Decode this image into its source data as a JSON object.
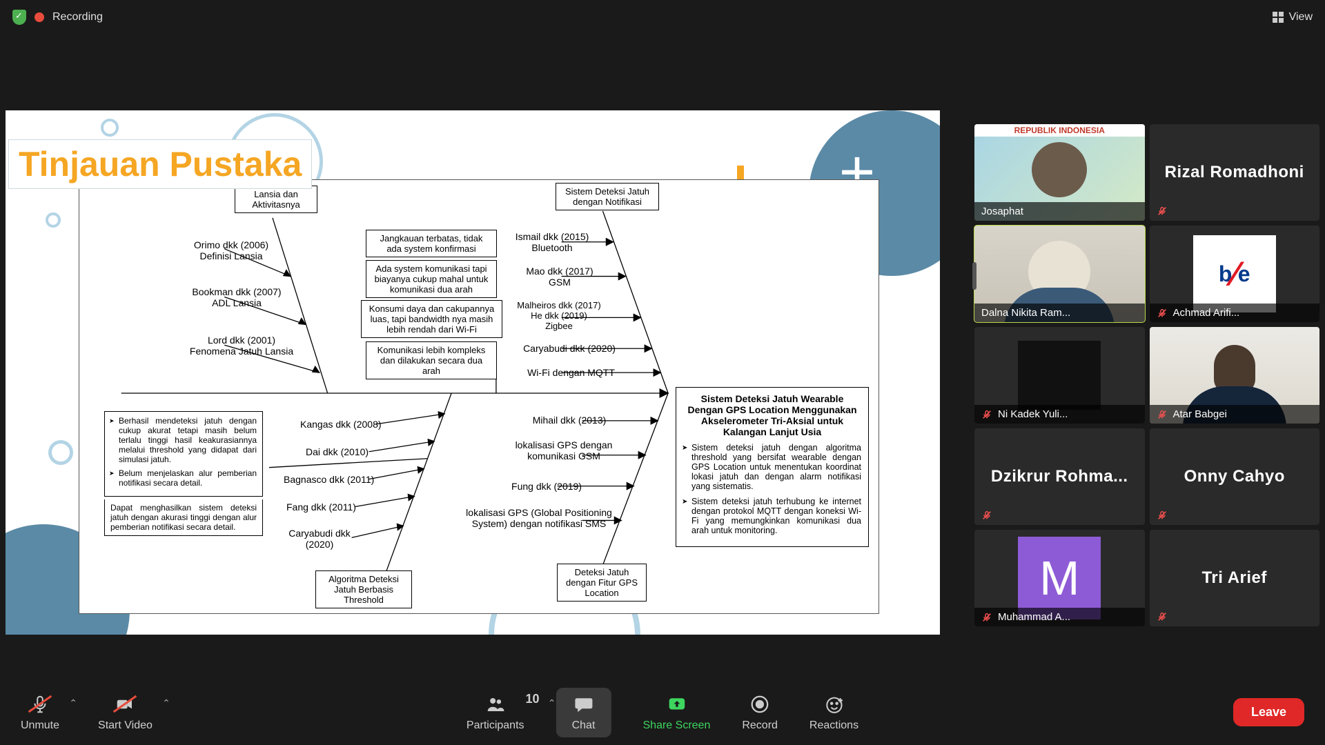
{
  "topbar": {
    "recording": "Recording",
    "view": "View"
  },
  "slide": {
    "title": "Tinjauan Pustaka",
    "b_top_left": "Lansia dan Aktivitasnya",
    "b_top_right": "Sistem Deteksi Jatuh dengan Notifikasi",
    "l1": "Orimo dkk (2006)\nDefinisi Lansia",
    "l2": "Bookman dkk (2007)\nADL Lansia",
    "l3": "Lord dkk (2001)\nFenomena Jatuh Lansia",
    "m1": "Jangkauan terbatas, tidak ada system konfirmasi",
    "m2": "Ada system komunikasi tapi biayanya cukup mahal untuk komunikasi dua arah",
    "m3": "Konsumi daya dan cakupannya luas, tapi bandwidth nya masih lebih rendah dari Wi-Fi",
    "m4": "Komunikasi lebih kompleks dan dilakukan secara dua arah",
    "r1": "Ismail dkk (2015)\nBluetooth",
    "r2": "Mao dkk (2017)\nGSM",
    "r3": "Malheiros dkk (2017)\nHe dkk (2019)\nZigbee",
    "r4": "Caryabudi dkk (2020)",
    "r5": "Wi-Fi dengan MQTT",
    "main_hd": "Sistem Deteksi Jatuh Wearable Dengan GPS Location Menggunakan Akselerometer Tri-Aksial untuk Kalangan Lanjut Usia",
    "main_li1": "Sistem deteksi jatuh dengan algoritma threshold yang bersifat wearable dengan GPS Location untuk menentukan koordinat lokasi jatuh dan dengan alarm notifikasi yang sistematis.",
    "main_li2": "Sistem deteksi jatuh terhubung ke internet dengan protokol MQTT dengan koneksi Wi-Fi yang memungkinkan komunikasi dua arah untuk monitoring.",
    "note_li1": "Berhasil mendeteksi jatuh dengan cukup akurat tetapi masih belum terlalu tinggi hasil keakurasiannya melalui threshold yang didapat dari simulasi jatuh.",
    "note_li2": "Belum menjelaskan alur pemberian notifikasi secara detail.",
    "note_sub": "Dapat menghasilkan sistem deteksi jatuh dengan akurasi tinggi dengan alur pemberian notifikasi secara detail.",
    "bl1": "Kangas dkk (2008)",
    "bl2": "Dai dkk (2010)",
    "bl3": "Bagnasco dkk (2011)",
    "bl4": "Fang dkk (2011)",
    "bl5": "Caryabudi  dkk (2020)",
    "br1": "Mihail dkk (2013)",
    "br2": "lokalisasi GPS dengan komunikasi GSM",
    "br3": "Fung dkk (2019)",
    "br4": "lokalisasi GPS (Global Positioning System) dengan notifikasi SMS",
    "b_bot_left": "Algoritma Deteksi Jatuh Berbasis Threshold",
    "b_bot_right": "Deteksi Jatuh dengan Fitur GPS Location"
  },
  "participants": [
    {
      "name": "Josaphat",
      "muted": false,
      "kind": "idcard",
      "header": "REPUBLIK INDONESIA"
    },
    {
      "name": "Rizal Romadhoni",
      "muted": true,
      "kind": "nameonly"
    },
    {
      "name": "Dalna Nikita Ram...",
      "muted": false,
      "kind": "hijab",
      "active": true
    },
    {
      "name": "Achmad Arifi...",
      "muted": true,
      "kind": "logo"
    },
    {
      "name": "Ni Kadek Yuli...",
      "muted": true,
      "kind": "black"
    },
    {
      "name": "Atar Babgei",
      "muted": true,
      "kind": "cam2"
    },
    {
      "name": "Dzikrur  Rohma...",
      "muted": true,
      "kind": "nameonly"
    },
    {
      "name": "Onny Cahyo",
      "muted": true,
      "kind": "nameonly"
    },
    {
      "name": "Muhammad A...",
      "muted": true,
      "kind": "letter",
      "letter": "M"
    },
    {
      "name": "Tri Arief",
      "muted": true,
      "kind": "nameonly"
    }
  ],
  "toolbar": {
    "unmute": "Unmute",
    "startvideo": "Start Video",
    "participants": "Participants",
    "participants_count": "10",
    "chat": "Chat",
    "share": "Share Screen",
    "record": "Record",
    "reactions": "Reactions",
    "leave": "Leave"
  }
}
